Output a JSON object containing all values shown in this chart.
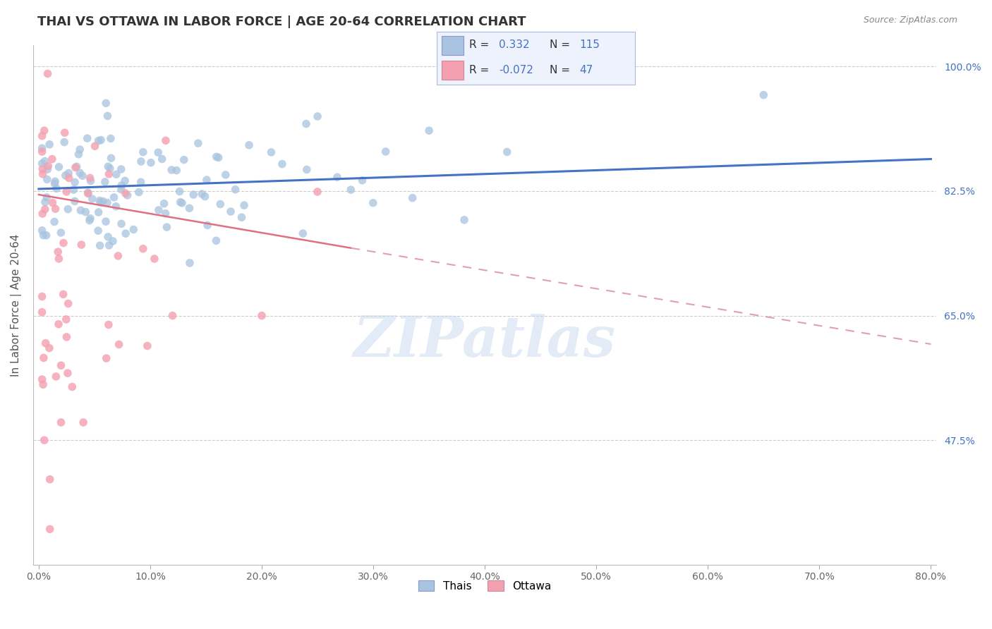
{
  "title": "THAI VS OTTAWA IN LABOR FORCE | AGE 20-64 CORRELATION CHART",
  "source": "Source: ZipAtlas.com",
  "ylabel": "In Labor Force | Age 20-64",
  "x_min": 0.0,
  "x_max": 0.8,
  "y_min": 0.3,
  "y_max": 1.03,
  "y_ticks": [
    0.475,
    0.65,
    0.825,
    1.0
  ],
  "y_tick_labels": [
    "47.5%",
    "65.0%",
    "82.5%",
    "100.0%"
  ],
  "x_ticks": [
    0.0,
    0.1,
    0.2,
    0.3,
    0.4,
    0.5,
    0.6,
    0.7,
    0.8
  ],
  "x_tick_labels": [
    "0.0%",
    "10.0%",
    "20.0%",
    "30.0%",
    "40.0%",
    "50.0%",
    "60.0%",
    "70.0%",
    "80.0%"
  ],
  "thai_R": 0.332,
  "thai_N": 115,
  "ottawa_R": -0.072,
  "ottawa_N": 47,
  "thai_color": "#a8c4e0",
  "ottawa_color": "#f4a0b0",
  "trend_thai_color": "#4472c4",
  "trend_ottawa_solid_color": "#e07080",
  "trend_ottawa_dash_color": "#e0a0b0",
  "watermark_text": "ZIPatlas",
  "background_color": "#ffffff",
  "title_fontsize": 13,
  "axis_label_fontsize": 11,
  "tick_fontsize": 10,
  "legend_R_color": "#4472c4",
  "legend_label_color": "#333333"
}
